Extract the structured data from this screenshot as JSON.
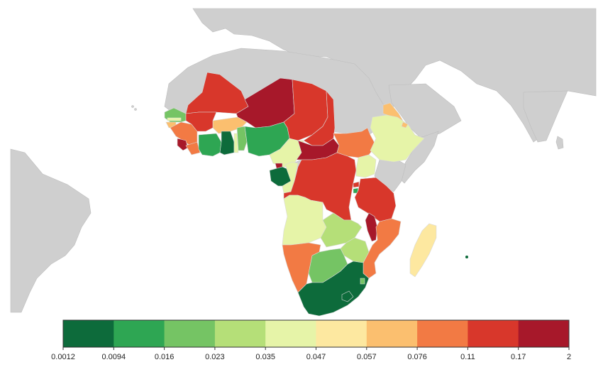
{
  "legend": {
    "colors": [
      "#0d6b3b",
      "#2ea653",
      "#75c464",
      "#b5df78",
      "#e6f4a8",
      "#fde8a0",
      "#fbbf6f",
      "#f27a44",
      "#d8372b",
      "#a7182a"
    ],
    "breaks": [
      "0.0012",
      "0.0094",
      "0.016",
      "0.023",
      "0.035",
      "0.047",
      "0.057",
      "0.076",
      "0.11",
      "0.17",
      "2"
    ]
  },
  "colors": {
    "land": "#cfcfcf",
    "ocean": "#ffffff"
  }
}
